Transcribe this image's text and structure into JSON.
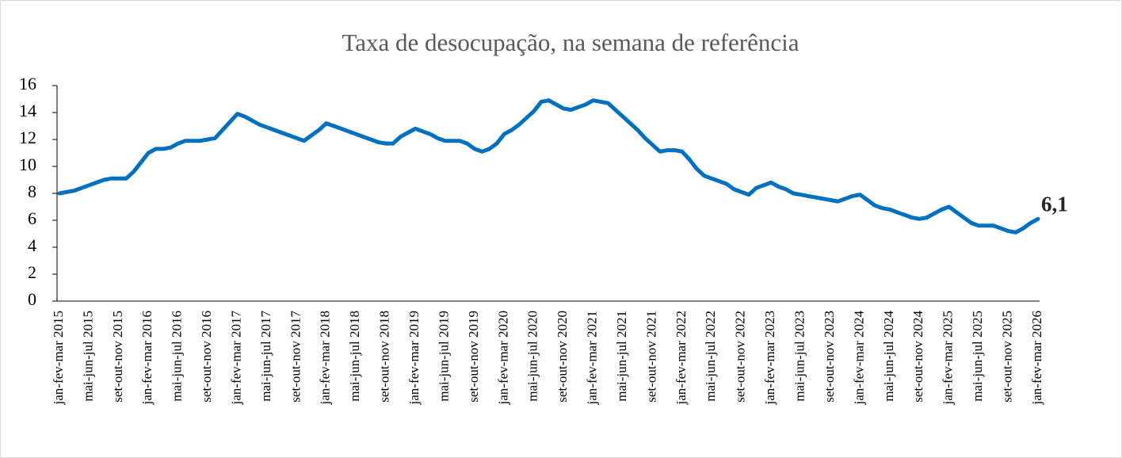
{
  "chart_data": {
    "type": "line",
    "title": "Taxa de desocupação, na semana de referência",
    "categories": [
      "jan-fev-mar 2015",
      null,
      null,
      null,
      "mai-jun-jul 2015",
      null,
      null,
      null,
      "set-out-nov 2015",
      null,
      null,
      null,
      "jan-fev-mar 2016",
      null,
      null,
      null,
      "mai-jun-jul 2016",
      null,
      null,
      null,
      "set-out-nov 2016",
      null,
      null,
      null,
      "jan-fev-mar 2017",
      null,
      null,
      null,
      "mai-jun-jul 2017",
      null,
      null,
      null,
      "set-out-nov 2017",
      null,
      null,
      null,
      "jan-fev-mar 2018",
      null,
      null,
      null,
      "mai-jun-jul 2018",
      null,
      null,
      null,
      "set-out-nov 2018",
      null,
      null,
      null,
      "jan-fev-mar 2019",
      null,
      null,
      null,
      "mai-jun-jul 2019",
      null,
      null,
      null,
      "set-out-nov 2019",
      null,
      null,
      null,
      "jan-fev-mar 2020",
      null,
      null,
      null,
      "mai-jun-jul 2020",
      null,
      null,
      null,
      "set-out-nov 2020",
      null,
      null,
      null,
      "jan-fev-mar 2021",
      null,
      null,
      null,
      "mai-jun-jul 2021",
      null,
      null,
      null,
      "set-out-nov 2021",
      null,
      null,
      null,
      "jan-fev-mar 2022",
      null,
      null,
      null,
      "mai-jun-jul 2022",
      null,
      null,
      null,
      "set-out-nov 2022",
      null,
      null,
      null,
      "jan-fev-mar 2023",
      null,
      null,
      null,
      "mai-jun-jul 2023",
      null,
      null,
      null,
      "set-out-nov 2023",
      null,
      null,
      null,
      "jan-fev-mar 2024",
      null,
      null,
      null,
      "mai-jun-jul 2024",
      null,
      null,
      null,
      "set-out-nov 2024",
      null,
      null,
      null,
      "jan-fev-mar 2025",
      null,
      null,
      null,
      "mai-jun-jul 2025",
      null,
      null,
      null,
      "set-out-nov 2025",
      null,
      null,
      null,
      "jan-fev-mar 2026"
    ],
    "values": [
      8.0,
      8.1,
      8.2,
      8.4,
      8.6,
      8.8,
      9.0,
      9.1,
      9.1,
      9.1,
      9.6,
      10.3,
      11.0,
      11.3,
      11.3,
      11.4,
      11.7,
      11.9,
      11.9,
      11.9,
      12.0,
      12.1,
      12.7,
      13.3,
      13.9,
      13.7,
      13.4,
      13.1,
      12.9,
      12.7,
      12.5,
      12.3,
      12.1,
      11.9,
      12.3,
      12.7,
      13.2,
      13.0,
      12.8,
      12.6,
      12.4,
      12.2,
      12.0,
      11.8,
      11.7,
      11.7,
      12.2,
      12.5,
      12.8,
      12.6,
      12.4,
      12.1,
      11.9,
      11.9,
      11.9,
      11.7,
      11.3,
      11.1,
      11.3,
      11.7,
      12.4,
      12.7,
      13.1,
      13.6,
      14.1,
      14.8,
      14.9,
      14.6,
      14.3,
      14.2,
      14.4,
      14.6,
      14.9,
      14.8,
      14.7,
      14.2,
      13.7,
      13.2,
      12.7,
      12.1,
      11.6,
      11.1,
      11.2,
      11.2,
      11.1,
      10.5,
      9.8,
      9.3,
      9.1,
      8.9,
      8.7,
      8.3,
      8.1,
      7.9,
      8.4,
      8.6,
      8.8,
      8.5,
      8.3,
      8.0,
      7.9,
      7.8,
      7.7,
      7.6,
      7.5,
      7.4,
      7.6,
      7.8,
      7.9,
      7.5,
      7.1,
      6.9,
      6.8,
      6.6,
      6.4,
      6.2,
      6.1,
      6.2,
      6.5,
      6.8,
      7.0,
      6.6,
      6.2,
      5.8,
      5.6,
      5.6,
      5.6,
      5.4,
      5.2,
      5.1,
      5.4,
      5.8,
      6.1
    ],
    "value_labels": [
      null,
      null,
      null,
      null,
      null,
      null,
      null,
      null,
      null,
      null,
      null,
      null,
      null,
      null,
      null,
      null,
      null,
      null,
      null,
      null,
      null,
      null,
      null,
      null,
      null,
      null,
      null,
      null,
      null,
      null,
      null,
      null,
      null,
      null,
      null,
      null,
      null,
      null,
      null,
      null,
      null,
      null,
      null,
      null,
      null,
      null,
      null,
      null,
      null,
      null,
      null,
      null,
      null,
      null,
      null,
      null,
      null,
      null,
      null,
      null,
      null,
      null,
      null,
      null,
      null,
      null,
      null,
      null,
      null,
      null,
      null,
      null,
      null,
      null,
      null,
      null,
      null,
      null,
      null,
      null,
      null,
      null,
      null,
      null,
      null,
      null,
      null,
      null,
      null,
      null,
      null,
      null,
      null,
      null,
      null,
      null,
      null,
      null,
      null,
      null,
      null,
      null,
      null,
      null,
      null,
      null,
      null,
      null,
      null,
      null,
      null,
      null,
      null,
      null,
      null,
      null,
      null,
      null,
      null,
      null,
      null,
      null,
      null,
      null,
      null,
      null,
      null,
      null,
      null,
      null,
      null,
      null,
      "6,1"
    ],
    "color": "#0070c0",
    "ylim": [
      0,
      16
    ],
    "yticks": [
      0,
      2,
      4,
      6,
      8,
      10,
      12,
      14,
      16
    ]
  }
}
